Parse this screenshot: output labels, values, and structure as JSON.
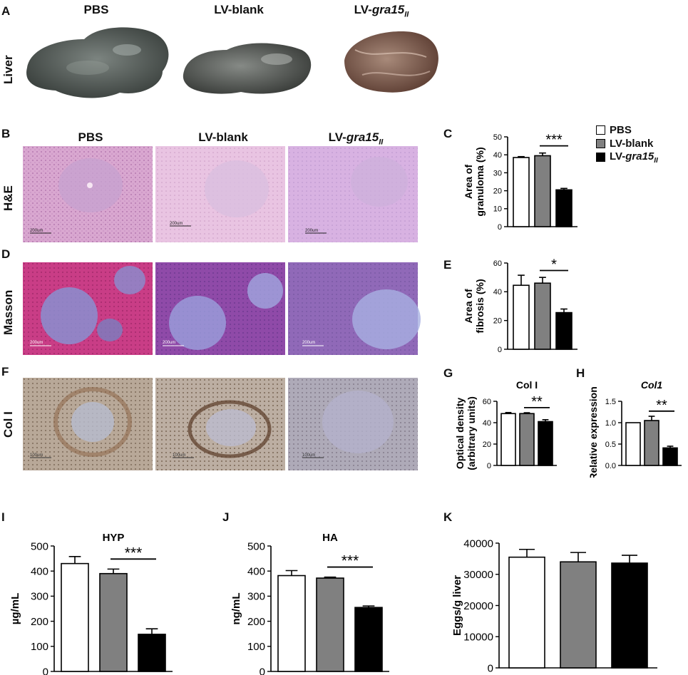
{
  "panel_letters": {
    "A": "A",
    "B": "B",
    "C": "C",
    "D": "D",
    "E": "E",
    "F": "F",
    "G": "G",
    "H": "H",
    "I": "I",
    "J": "J",
    "K": "K"
  },
  "groups": {
    "pbs": "PBS",
    "blank": "LV-blank",
    "gra_prefix": "LV-",
    "gra_italic": "gra15",
    "gra_sub": "II"
  },
  "row_labels": {
    "liver": "Liver",
    "he": "H&E",
    "masson": "Masson",
    "col": "Col I"
  },
  "scale_bars": {
    "b1": "200um",
    "b2": "200um",
    "b3": "200um",
    "d1": "200um",
    "d2": "200um",
    "d3": "200um",
    "f1": "100um",
    "f2": "100um",
    "f3": "100um"
  },
  "colors": {
    "pbs": "#ffffff",
    "blank": "#808080",
    "gra": "#000000"
  },
  "legend": {
    "position": "top-right of panel C"
  },
  "chart_data": [
    {
      "id": "C",
      "type": "bar",
      "categories": [
        "PBS",
        "LV-blank",
        "LV-gra15II"
      ],
      "values": [
        38.5,
        39.5,
        20.5
      ],
      "errors": [
        0.5,
        1.5,
        0.8
      ],
      "ylabel_lines": [
        "Area of",
        "granuloma (%)"
      ],
      "ylim": [
        0,
        50
      ],
      "yticks": [
        0,
        10,
        20,
        30,
        40,
        50
      ],
      "sig": "***",
      "sig_between": [
        1,
        2
      ]
    },
    {
      "id": "E",
      "type": "bar",
      "categories": [
        "PBS",
        "LV-blank",
        "LV-gra15II"
      ],
      "values": [
        44.5,
        46,
        25.5
      ],
      "errors": [
        7,
        4,
        2.5
      ],
      "ylabel_lines": [
        "Area of",
        "fibrosis (%)"
      ],
      "ylim": [
        0,
        60
      ],
      "yticks": [
        0,
        20,
        40,
        60
      ],
      "sig": "*",
      "sig_between": [
        1,
        2
      ]
    },
    {
      "id": "G",
      "type": "bar",
      "title": "Col I",
      "categories": [
        "PBS",
        "LV-blank",
        "LV-gra15II"
      ],
      "values": [
        48.5,
        48.5,
        41
      ],
      "errors": [
        1,
        0.8,
        1.8
      ],
      "ylabel_lines": [
        "Optical density",
        "(arbitrary units)"
      ],
      "ylim": [
        0,
        60
      ],
      "yticks": [
        0,
        20,
        40,
        60
      ],
      "sig": "**",
      "sig_between": [
        1,
        2
      ]
    },
    {
      "id": "H",
      "type": "bar",
      "title": "Col1",
      "title_italic": true,
      "categories": [
        "PBS",
        "LV-blank",
        "LV-gra15II"
      ],
      "values": [
        1.0,
        1.05,
        0.41
      ],
      "errors": [
        0,
        0.1,
        0.04
      ],
      "ylabel_lines": [
        "Relative expression"
      ],
      "ylim": [
        0,
        1.5
      ],
      "yticks": [
        "0.0",
        "0.5",
        "1.0",
        "1.5"
      ],
      "sig": "**",
      "sig_between": [
        1,
        2
      ]
    },
    {
      "id": "I",
      "type": "bar",
      "title": "HYP",
      "categories": [
        "PBS",
        "LV-blank",
        "LV-gra15II"
      ],
      "values": [
        430,
        390,
        148
      ],
      "errors": [
        28,
        18,
        22
      ],
      "ylabel_lines": [
        "µg/mL"
      ],
      "ylim": [
        0,
        500
      ],
      "yticks": [
        0,
        100,
        200,
        300,
        400,
        500
      ],
      "sig": "***",
      "sig_between": [
        1,
        2
      ]
    },
    {
      "id": "J",
      "type": "bar",
      "title": "HA",
      "categories": [
        "PBS",
        "LV-blank",
        "LV-gra15II"
      ],
      "values": [
        382,
        372,
        255
      ],
      "errors": [
        20,
        4,
        6
      ],
      "ylabel_lines": [
        "ng/mL"
      ],
      "ylim": [
        0,
        500
      ],
      "yticks": [
        0,
        100,
        200,
        300,
        400,
        500
      ],
      "sig": "***",
      "sig_between": [
        1,
        2
      ]
    },
    {
      "id": "K",
      "type": "bar",
      "categories": [
        "PBS",
        "LV-blank",
        "LV-gra15II"
      ],
      "values": [
        35500,
        34000,
        33600
      ],
      "errors": [
        2500,
        3000,
        2500
      ],
      "ylabel_lines": [
        "Eggs/g liver"
      ],
      "ylim": [
        0,
        40000
      ],
      "yticks": [
        0,
        10000,
        20000,
        30000,
        40000
      ]
    }
  ]
}
